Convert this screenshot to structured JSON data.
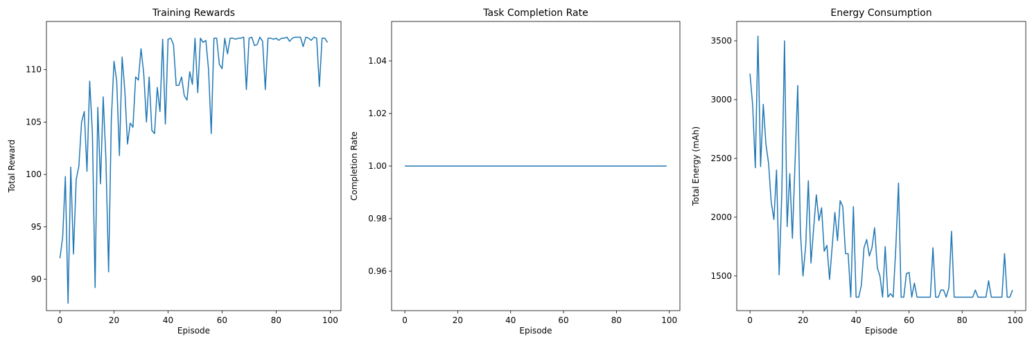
{
  "chart_data": [
    {
      "type": "line",
      "title": "Training Rewards",
      "xlabel": "Episode",
      "ylabel": "Total Reward",
      "xlim": [
        -5,
        104
      ],
      "ylim": [
        87,
        114.6
      ],
      "xticks": [
        0,
        20,
        40,
        60,
        80,
        100
      ],
      "yticks": [
        90,
        95,
        100,
        105,
        110
      ],
      "color": "#1f77b4",
      "series": [
        {
          "values": [
            92.0,
            94.0,
            99.8,
            87.7,
            100.7,
            92.4,
            99.5,
            100.8,
            105.0,
            106.0,
            100.3,
            108.9,
            104.0,
            89.2,
            106.4,
            99.1,
            107.4,
            101.5,
            90.7,
            105.2,
            110.8,
            108.9,
            101.8,
            111.2,
            108.0,
            102.9,
            104.9,
            104.5,
            109.3,
            109.0,
            112.0,
            109.6,
            105.0,
            109.3,
            104.2,
            103.9,
            108.3,
            106.0,
            112.9,
            104.8,
            112.9,
            113.0,
            112.4,
            108.5,
            108.5,
            109.3,
            107.5,
            107.1,
            109.8,
            108.6,
            113.0,
            107.8,
            113.0,
            112.6,
            112.8,
            110.0,
            103.9,
            113.0,
            113.0,
            110.5,
            110.1,
            113.0,
            111.5,
            113.0,
            113.0,
            112.9,
            113.0,
            113.0,
            113.1,
            108.1,
            113.0,
            113.1,
            112.3,
            112.4,
            113.1,
            112.7,
            108.1,
            113.0,
            113.0,
            112.9,
            113.0,
            112.8,
            113.0,
            113.0,
            113.1,
            112.7,
            113.0,
            113.1,
            113.1,
            113.1,
            112.2,
            113.1,
            113.0,
            112.8,
            113.1,
            113.0,
            108.4,
            113.0,
            113.0,
            112.6
          ]
        }
      ]
    },
    {
      "type": "line",
      "title": "Task Completion Rate",
      "xlabel": "Episode",
      "ylabel": "Completion Rate",
      "xlim": [
        -5,
        104
      ],
      "ylim": [
        0.945,
        1.055
      ],
      "xticks": [
        0,
        20,
        40,
        60,
        80,
        100
      ],
      "yticks": [
        0.96,
        0.98,
        1.0,
        1.02,
        1.04
      ],
      "ytick_labels": [
        "0.96",
        "0.98",
        "1.00",
        "1.02",
        "1.04"
      ],
      "color": "#1f77b4",
      "series": [
        {
          "x": [
            0,
            99
          ],
          "values": [
            1.0,
            1.0
          ]
        }
      ]
    },
    {
      "type": "line",
      "title": "Energy Consumption",
      "xlabel": "Episode",
      "ylabel": "Total Energy (mAh)",
      "xlim": [
        -5,
        104
      ],
      "ylim": [
        1205,
        3665
      ],
      "xticks": [
        0,
        20,
        40,
        60,
        80,
        100
      ],
      "yticks": [
        1500,
        2000,
        2500,
        3000,
        3500
      ],
      "color": "#1f77b4",
      "series": [
        {
          "values": [
            3220,
            2950,
            2420,
            3540,
            2430,
            2960,
            2620,
            2460,
            2130,
            1980,
            2400,
            1510,
            2200,
            3500,
            1920,
            2370,
            1820,
            2480,
            3120,
            1880,
            1500,
            1760,
            2310,
            1610,
            1900,
            2190,
            1970,
            2080,
            1710,
            1760,
            1470,
            1750,
            2040,
            1800,
            2140,
            2090,
            1690,
            1690,
            1320,
            2090,
            1320,
            1320,
            1420,
            1740,
            1810,
            1670,
            1740,
            1910,
            1570,
            1500,
            1320,
            1750,
            1320,
            1350,
            1320,
            1740,
            2290,
            1320,
            1320,
            1520,
            1530,
            1320,
            1440,
            1320,
            1320,
            1320,
            1320,
            1320,
            1320,
            1740,
            1320,
            1320,
            1380,
            1380,
            1320,
            1400,
            1880,
            1320,
            1320,
            1320,
            1320,
            1320,
            1320,
            1320,
            1320,
            1380,
            1320,
            1320,
            1320,
            1320,
            1460,
            1320,
            1320,
            1320,
            1320,
            1320,
            1690,
            1320,
            1320,
            1380
          ]
        }
      ]
    }
  ]
}
